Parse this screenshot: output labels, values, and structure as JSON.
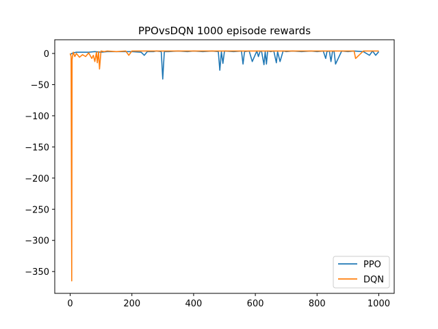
{
  "chart_data": {
    "type": "line",
    "title": "PPOvsDQN 1000 episode rewards",
    "xlabel": "",
    "ylabel": "",
    "xlim": [
      -50,
      1050
    ],
    "ylim": [
      -385,
      22
    ],
    "xticks": [
      0,
      200,
      400,
      600,
      800,
      1000
    ],
    "yticks": [
      0,
      -50,
      -100,
      -150,
      -200,
      -250,
      -300,
      -350
    ],
    "xtick_labels": [
      "0",
      "200",
      "400",
      "600",
      "800",
      "1000"
    ],
    "ytick_labels": [
      "0",
      "−50",
      "−100",
      "−150",
      "−200",
      "−250",
      "−300",
      "−350"
    ],
    "legend_position": "bottom-right",
    "series": [
      {
        "name": "PPO",
        "color": "#1f77b4",
        "x": [
          0,
          5,
          10,
          20,
          40,
          60,
          80,
          100,
          120,
          150,
          180,
          200,
          230,
          240,
          250,
          270,
          280,
          295,
          300,
          305,
          320,
          350,
          380,
          400,
          430,
          460,
          480,
          485,
          490,
          495,
          500,
          530,
          555,
          560,
          565,
          580,
          590,
          605,
          610,
          615,
          620,
          628,
          632,
          636,
          640,
          650,
          660,
          668,
          672,
          680,
          690,
          700,
          720,
          750,
          780,
          800,
          820,
          828,
          832,
          840,
          845,
          850,
          855,
          860,
          880,
          900,
          920,
          950,
          970,
          980,
          990,
          1000
        ],
        "values": [
          -2,
          0,
          1,
          2,
          2,
          2,
          3,
          2,
          3,
          3,
          3,
          3,
          2,
          -3,
          3,
          3,
          4,
          3,
          -41,
          3,
          3,
          4,
          3,
          4,
          3,
          4,
          3,
          -27,
          3,
          -16,
          4,
          3,
          4,
          -17,
          3,
          4,
          -13,
          4,
          -5,
          3,
          4,
          -18,
          3,
          -17,
          4,
          3,
          4,
          -15,
          3,
          -13,
          4,
          3,
          4,
          3,
          4,
          3,
          4,
          -8,
          3,
          4,
          -13,
          3,
          4,
          -17,
          4,
          3,
          4,
          3,
          -3,
          4,
          -3,
          3
        ]
      },
      {
        "name": "DQN",
        "color": "#ff7f0e",
        "x": [
          0,
          3,
          5,
          6,
          8,
          10,
          15,
          20,
          30,
          40,
          50,
          60,
          70,
          75,
          80,
          85,
          88,
          92,
          95,
          100,
          110,
          120,
          150,
          180,
          190,
          200,
          250,
          300,
          350,
          400,
          450,
          500,
          550,
          600,
          650,
          700,
          750,
          800,
          850,
          900,
          920,
          925,
          950,
          1000
        ],
        "values": [
          0,
          -5,
          -365,
          -10,
          -3,
          2,
          -5,
          0,
          -6,
          -2,
          -5,
          1,
          -8,
          -3,
          -13,
          2,
          -15,
          3,
          -25,
          4,
          3,
          4,
          3,
          4,
          -3,
          4,
          4,
          4,
          4,
          4,
          4,
          4,
          4,
          4,
          4,
          4,
          4,
          4,
          4,
          4,
          4,
          -8,
          4,
          4
        ]
      }
    ]
  }
}
